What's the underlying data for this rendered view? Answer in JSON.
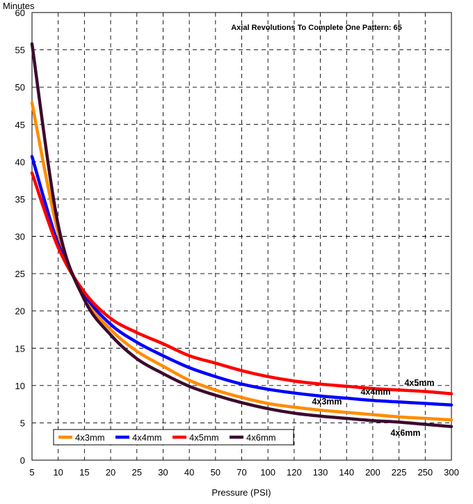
{
  "chart_data": {
    "type": "line",
    "title": "Axial Revolutions To Complete One Pattern: 65",
    "xlabel": "Pressure (PSI)",
    "ylabel": "Minutes",
    "x_scale": "categorical",
    "categories": [
      "5",
      "10",
      "15",
      "20",
      "25",
      "30",
      "40",
      "50",
      "70",
      "100",
      "120",
      "130",
      "140",
      "200",
      "225",
      "250",
      "300"
    ],
    "ylim": [
      0,
      60
    ],
    "yticks": [
      0,
      5,
      10,
      15,
      20,
      25,
      30,
      35,
      40,
      45,
      50,
      55,
      60
    ],
    "grid": true,
    "legend_position": "bottom-left",
    "series": [
      {
        "name": "4x3mm",
        "color": "#ff8c00",
        "end_label": "4x3mm",
        "values": [
          47.9,
          30.5,
          21.8,
          17.5,
          14.6,
          12.6,
          10.7,
          9.4,
          8.4,
          7.6,
          7.1,
          6.7,
          6.4,
          6.1,
          5.8,
          5.6,
          5.4
        ]
      },
      {
        "name": "4x4mm",
        "color": "#0000ff",
        "end_label": "4x4mm",
        "values": [
          40.7,
          29.0,
          22.2,
          18.2,
          15.8,
          14.0,
          12.4,
          11.2,
          10.2,
          9.5,
          9.0,
          8.6,
          8.3,
          8.0,
          7.8,
          7.6,
          7.4
        ]
      },
      {
        "name": "4x5mm",
        "color": "#ff0000",
        "end_label": "4x5mm",
        "values": [
          38.5,
          28.5,
          22.5,
          19.0,
          17.1,
          15.6,
          14.0,
          13.0,
          12.0,
          11.2,
          10.6,
          10.2,
          9.9,
          9.6,
          9.4,
          9.2,
          8.9
        ]
      },
      {
        "name": "4x6mm",
        "color": "#3b0a2e",
        "end_label": "4x6mm",
        "values": [
          55.8,
          31.5,
          21.5,
          16.8,
          13.6,
          11.6,
          9.9,
          8.7,
          7.7,
          6.9,
          6.3,
          5.9,
          5.6,
          5.3,
          5.1,
          4.8,
          4.5
        ]
      }
    ]
  }
}
